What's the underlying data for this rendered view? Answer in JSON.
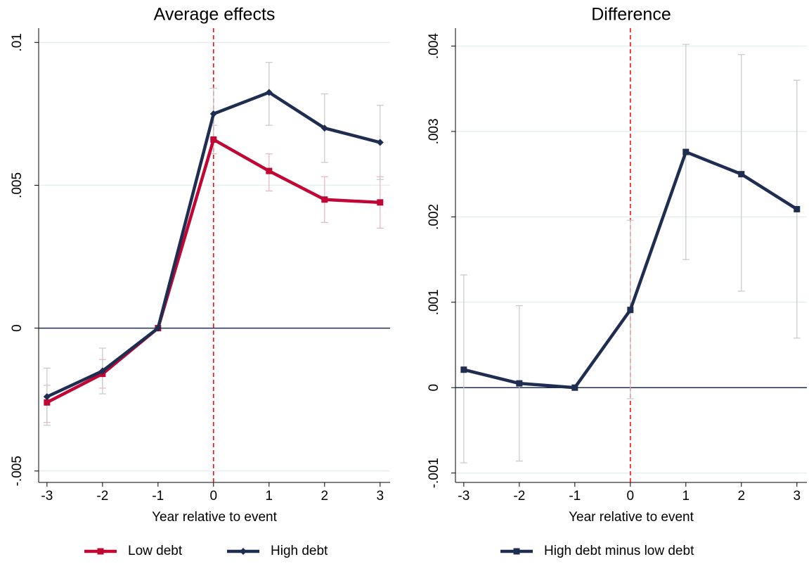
{
  "chart_data": [
    {
      "type": "line",
      "title": "Average effects",
      "x_label": "Year relative to event",
      "x": [
        -3,
        -2,
        -1,
        0,
        1,
        2,
        3
      ],
      "xlim": [
        -3.15,
        3.18
      ],
      "xticks": [
        -3,
        -2,
        -1,
        0,
        1,
        2,
        3
      ],
      "ylim": [
        -0.0054,
        0.0105
      ],
      "yticks": [
        {
          "value": -0.005,
          "label": "-.005"
        },
        0,
        {
          "value": 0.005,
          "label": ".005"
        },
        {
          "value": 0.01,
          "label": ".01"
        }
      ],
      "grid": true,
      "hline": 0,
      "vline": 0,
      "legend": "bottom",
      "series": [
        {
          "name": "Low debt",
          "color": "#c10534",
          "marker": "square",
          "errorbar_color": "#e8b4bf",
          "values": [
            -0.0026,
            -0.0016,
            0,
            0.0066,
            0.0055,
            0.0045,
            0.0044
          ],
          "lower": [
            -0.0033,
            -0.0021,
            null,
            0.0061,
            0.0048,
            0.0037,
            0.0035
          ],
          "upper": [
            -0.002,
            -0.0011,
            null,
            0.0071,
            0.0061,
            0.0053,
            0.0053
          ]
        },
        {
          "name": "High debt",
          "color": "#1f2d50",
          "marker": "diamond",
          "errorbar_color": "#c8c8c8",
          "values": [
            -0.0024,
            -0.0015,
            0,
            0.0075,
            0.00825,
            0.007,
            0.0065
          ],
          "lower": [
            -0.0034,
            -0.0023,
            null,
            0.0066,
            0.0071,
            0.0058,
            0.0052
          ],
          "upper": [
            -0.0014,
            -0.0007,
            null,
            0.0084,
            0.0093,
            0.0082,
            0.0078
          ]
        }
      ]
    },
    {
      "type": "line",
      "title": "Difference",
      "x_label": "Year relative to event",
      "x": [
        -3,
        -2,
        -1,
        0,
        1,
        2,
        3
      ],
      "xlim": [
        -3.15,
        3.18
      ],
      "xticks": [
        -3,
        -2,
        -1,
        0,
        1,
        2,
        3
      ],
      "ylim": [
        -0.00111,
        0.00421
      ],
      "yticks": [
        {
          "value": -0.001,
          "label": "-.001"
        },
        0,
        {
          "value": 0.001,
          "label": ".001"
        },
        {
          "value": 0.002,
          "label": ".002"
        },
        {
          "value": 0.003,
          "label": ".003"
        },
        {
          "value": 0.004,
          "label": ".004"
        }
      ],
      "grid": true,
      "hline": 0,
      "vline": 0,
      "legend": "bottom",
      "series": [
        {
          "name": "High debt minus low debt",
          "color": "#1f2d50",
          "marker": "square",
          "errorbar_color": "#c8c8c8",
          "values": [
            0.00021,
            5e-05,
            0,
            0.00091,
            0.00276,
            0.0025,
            0.00209
          ],
          "lower": [
            -0.00088,
            -0.00086,
            null,
            -0.00013,
            0.0015,
            0.00113,
            0.00058
          ],
          "upper": [
            0.00132,
            0.00096,
            null,
            0.00196,
            0.00402,
            0.0039,
            0.0036
          ]
        }
      ]
    }
  ]
}
